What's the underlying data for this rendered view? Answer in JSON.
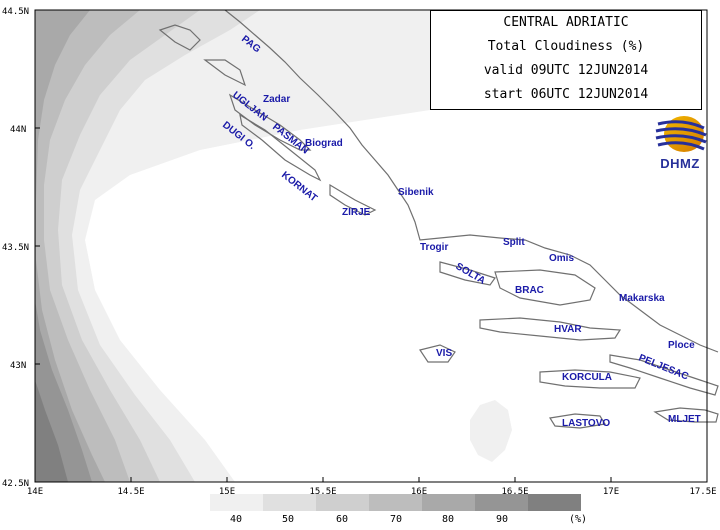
{
  "title": {
    "line1": "CENTRAL ADRIATIC",
    "line2": "Total Cloudiness (%)",
    "line3": "valid 09UTC 12JUN2014",
    "line4": "start 06UTC 12JUN2014"
  },
  "logo": {
    "text": "DHMZ"
  },
  "axes": {
    "lat_labels": [
      "44.5N",
      "44N",
      "43.5N",
      "43N",
      "42.5N"
    ],
    "lon_labels": [
      "14E",
      "14.5E",
      "15E",
      "15.5E",
      "16E",
      "16.5E",
      "17E",
      "17.5E"
    ]
  },
  "places": [
    {
      "name": "PAG"
    },
    {
      "name": "Zadar"
    },
    {
      "name": "UGLJAN"
    },
    {
      "name": "PASMAN"
    },
    {
      "name": "Biograd"
    },
    {
      "name": "DUGI O."
    },
    {
      "name": "KORNAT"
    },
    {
      "name": "Sibenik"
    },
    {
      "name": "ZIRJE"
    },
    {
      "name": "Trogir"
    },
    {
      "name": "Split"
    },
    {
      "name": "Omis"
    },
    {
      "name": "SOLTA"
    },
    {
      "name": "BRAC"
    },
    {
      "name": "Makarska"
    },
    {
      "name": "HVAR"
    },
    {
      "name": "VIS"
    },
    {
      "name": "Ploce"
    },
    {
      "name": "KORCULA"
    },
    {
      "name": "PELJESAC"
    },
    {
      "name": "LASTOVO"
    },
    {
      "name": "MLJET"
    }
  ],
  "legend": {
    "labels": [
      "40",
      "50",
      "60",
      "70",
      "80",
      "90"
    ],
    "unit": "(%)",
    "colors": [
      "#f0f0f0",
      "#e0e0e0",
      "#cfcfcf",
      "#bdbdbd",
      "#a9a9a9",
      "#959595",
      "#808080"
    ]
  },
  "colors": {
    "place_label": "#1a1aa8",
    "coastline": "#707070",
    "logo": "#27309a"
  }
}
